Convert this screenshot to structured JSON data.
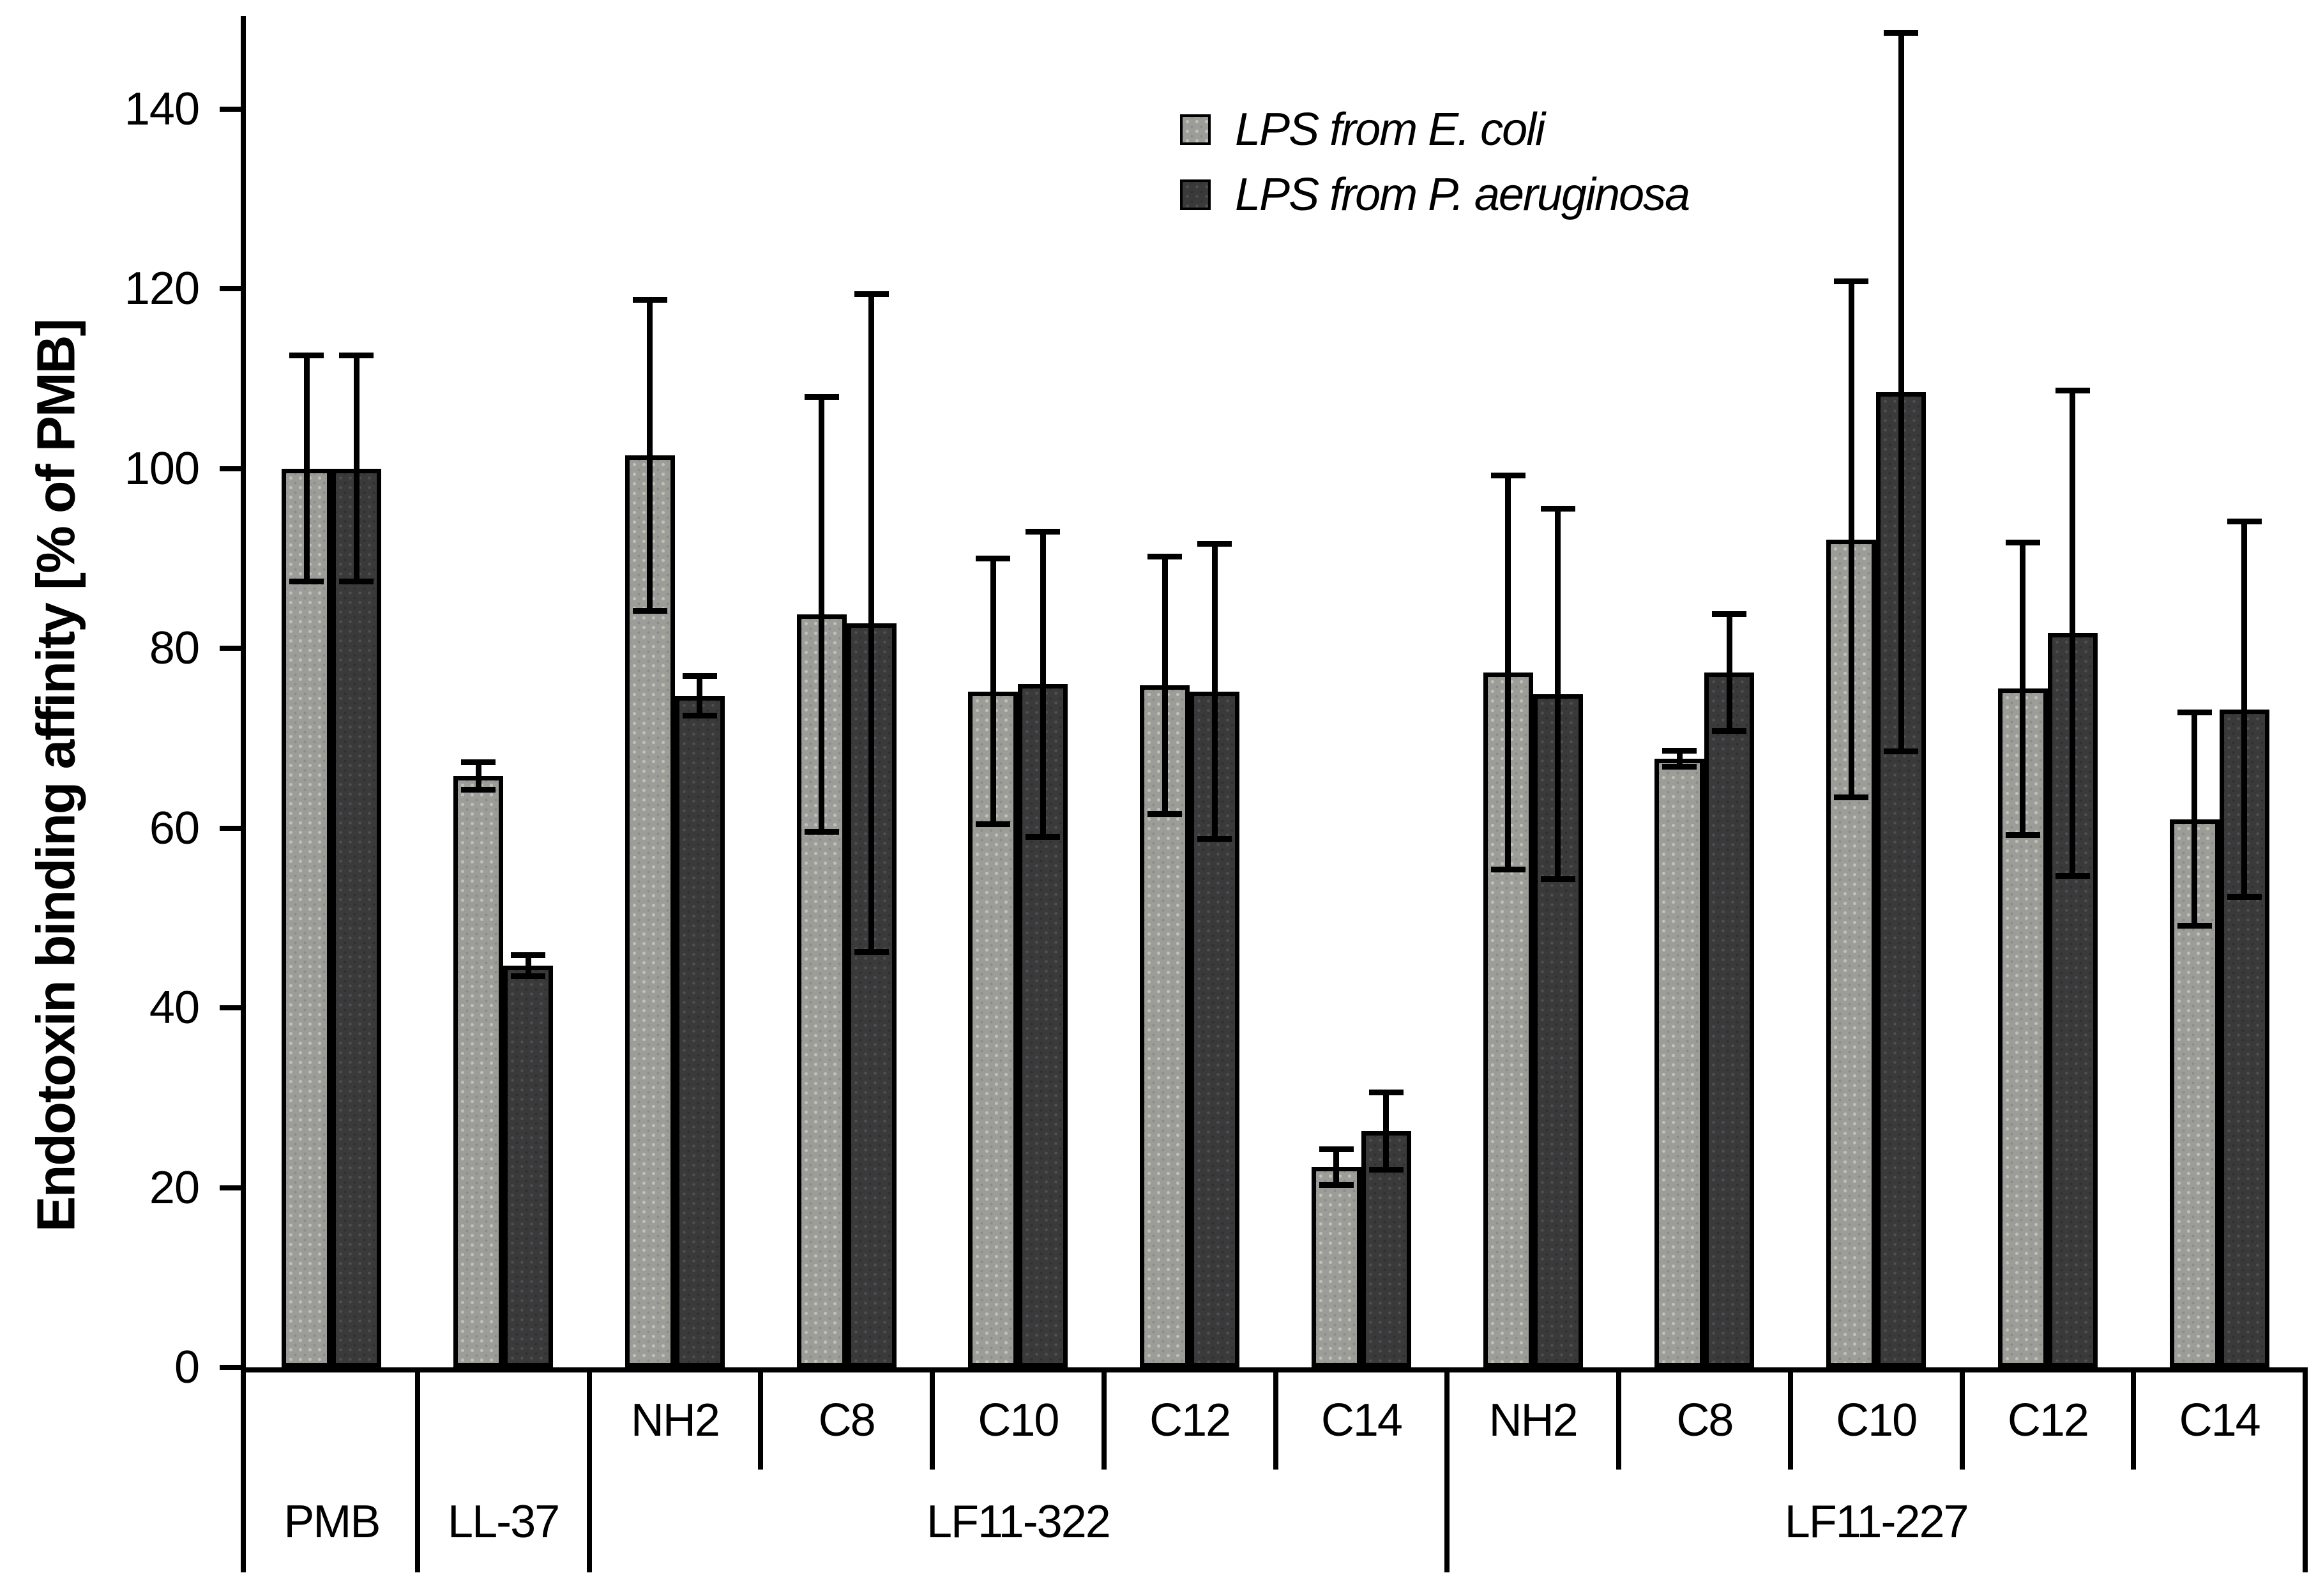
{
  "chart_data": {
    "type": "bar",
    "title": "",
    "ylabel": "Endotoxin binding affinity [% of PMB]",
    "ylim": [
      0,
      150
    ],
    "yticks": [
      0,
      20,
      40,
      60,
      80,
      100,
      120,
      140
    ],
    "grid": false,
    "legend_position": "top-center",
    "error_bars": true,
    "colors": {
      "ecoli": "#9c9c98",
      "paer": "#3a3a3a",
      "line": "#000000",
      "background": "#ffffff"
    },
    "series": [
      {
        "key": "ecoli",
        "name": "LPS from E. coli"
      },
      {
        "key": "paer",
        "name": "LPS from P. aeruginosa"
      }
    ],
    "axis_groups": [
      {
        "label": "PMB",
        "span": 1
      },
      {
        "label": "LL-37",
        "span": 1
      },
      {
        "label": "LF11-322",
        "span": 5
      },
      {
        "label": "LF11-227",
        "span": 5
      }
    ],
    "columns": [
      {
        "sublabel": "",
        "group": "PMB",
        "ecoli": {
          "value": 100,
          "err": 12.6
        },
        "paer": {
          "value": 100,
          "err": 12.6
        }
      },
      {
        "sublabel": "",
        "group": "LL-37",
        "ecoli": {
          "value": 65.8,
          "err": 1.5
        },
        "paer": {
          "value": 44.7,
          "err": 1.2
        }
      },
      {
        "sublabel": "NH2",
        "group": "LF11-322",
        "ecoli": {
          "value": 101.5,
          "err": 17.3
        },
        "paer": {
          "value": 74.7,
          "err": 2.2
        }
      },
      {
        "sublabel": "C8",
        "group": "LF11-322",
        "ecoli": {
          "value": 83.8,
          "err": 24.2
        },
        "paer": {
          "value": 82.8,
          "err": 36.6
        }
      },
      {
        "sublabel": "C10",
        "group": "LF11-322",
        "ecoli": {
          "value": 75.2,
          "err": 14.8
        },
        "paer": {
          "value": 76.0,
          "err": 17.0
        }
      },
      {
        "sublabel": "C12",
        "group": "LF11-322",
        "ecoli": {
          "value": 75.9,
          "err": 14.3
        },
        "paer": {
          "value": 75.2,
          "err": 16.4
        }
      },
      {
        "sublabel": "C14",
        "group": "LF11-322",
        "ecoli": {
          "value": 22.3,
          "err": 2.0
        },
        "paer": {
          "value": 26.3,
          "err": 4.3
        }
      },
      {
        "sublabel": "NH2",
        "group": "LF11-227",
        "ecoli": {
          "value": 77.3,
          "err": 21.9
        },
        "paer": {
          "value": 74.9,
          "err": 20.6
        }
      },
      {
        "sublabel": "C8",
        "group": "LF11-227",
        "ecoli": {
          "value": 67.7,
          "err": 0.9
        },
        "paer": {
          "value": 77.3,
          "err": 6.5
        }
      },
      {
        "sublabel": "C10",
        "group": "LF11-227",
        "ecoli": {
          "value": 92.1,
          "err": 28.7
        },
        "paer": {
          "value": 108.5,
          "err": 40.0
        }
      },
      {
        "sublabel": "C12",
        "group": "LF11-227",
        "ecoli": {
          "value": 75.5,
          "err": 16.3
        },
        "paer": {
          "value": 81.7,
          "err": 27.0
        }
      },
      {
        "sublabel": "C14",
        "group": "LF11-227",
        "ecoli": {
          "value": 61.0,
          "err": 11.9
        },
        "paer": {
          "value": 73.2,
          "err": 20.9
        }
      }
    ]
  }
}
